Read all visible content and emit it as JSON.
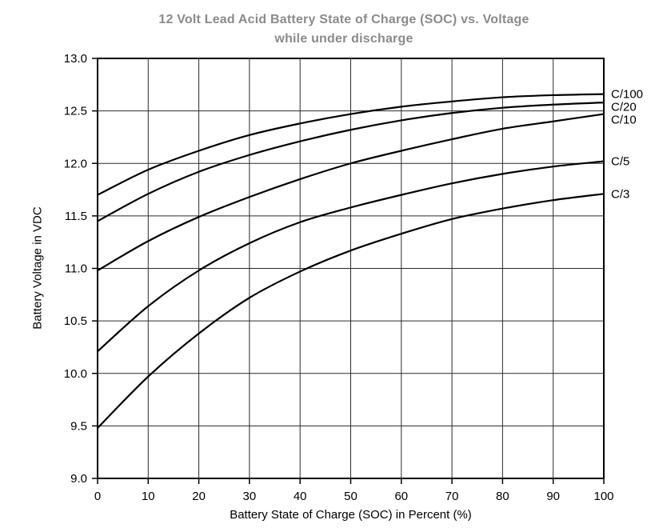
{
  "chart_data": {
    "type": "line",
    "title_line1": "12 Volt Lead Acid Battery State of Charge (SOC) vs. Voltage",
    "title_line2": "while under discharge",
    "xlabel": "Battery State of Charge (SOC) in Percent (%)",
    "ylabel": "Battery Voltage in VDC",
    "xlim": [
      0,
      100
    ],
    "ylim": [
      9.0,
      13.0
    ],
    "grid": true,
    "x_ticks": [
      0,
      10,
      20,
      30,
      40,
      50,
      60,
      70,
      80,
      90,
      100
    ],
    "x_tick_labels": [
      "0",
      "10",
      "20",
      "30",
      "40",
      "50",
      "60",
      "70",
      "80",
      "90",
      "100"
    ],
    "y_ticks": [
      9.0,
      9.5,
      10.0,
      10.5,
      11.0,
      11.5,
      12.0,
      12.5,
      13.0
    ],
    "y_tick_labels": [
      "9.0",
      "9.5",
      "10.0",
      "10.5",
      "11.0",
      "11.5",
      "12.0",
      "12.5",
      "13.0"
    ],
    "legend_position": "right-of-curves",
    "x": [
      0,
      10,
      20,
      30,
      40,
      50,
      60,
      70,
      80,
      90,
      100
    ],
    "series": [
      {
        "name": "C/100",
        "values": [
          11.7,
          11.94,
          12.12,
          12.27,
          12.38,
          12.47,
          12.54,
          12.59,
          12.63,
          12.65,
          12.66
        ]
      },
      {
        "name": "C/20",
        "values": [
          11.45,
          11.71,
          11.92,
          12.08,
          12.21,
          12.32,
          12.41,
          12.48,
          12.53,
          12.56,
          12.58
        ]
      },
      {
        "name": "C/10",
        "values": [
          10.98,
          11.26,
          11.49,
          11.68,
          11.85,
          12.0,
          12.12,
          12.23,
          12.33,
          12.4,
          12.47
        ]
      },
      {
        "name": "C/5",
        "values": [
          10.21,
          10.64,
          10.98,
          11.24,
          11.44,
          11.58,
          11.7,
          11.81,
          11.9,
          11.97,
          12.02
        ]
      },
      {
        "name": "C/3",
        "values": [
          9.48,
          9.97,
          10.38,
          10.72,
          10.97,
          11.17,
          11.33,
          11.47,
          11.57,
          11.65,
          11.71
        ]
      }
    ],
    "colors": {
      "line": "#000000",
      "grid": "#2a2a2a",
      "title": "#8b8b8b",
      "axis_text": "#000000"
    }
  }
}
